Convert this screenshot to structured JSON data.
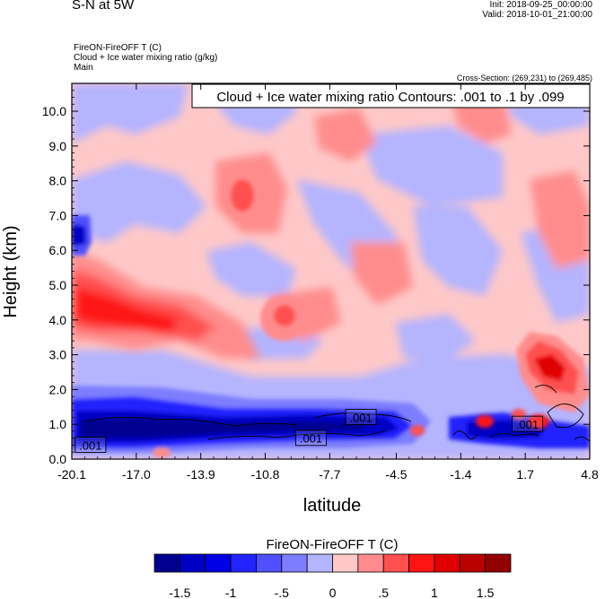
{
  "header": {
    "title": "S-N at 5W",
    "init": "Init: 2018-09-25_00:00:00",
    "valid": "Valid: 2018-10-01_21:00:00",
    "field_1": "FireON-FireOFF T   (C)",
    "field_2": "Cloud + Ice water mixing ratio   (g/kg)",
    "domain": "Main",
    "cross_section": "Cross-Section: (269,231) to (269,485)"
  },
  "chart_data": {
    "type": "heatmap",
    "title": "S-N at 5W",
    "xlabel": "latitude",
    "ylabel": "Height (km)",
    "xlim": [
      -20.1,
      4.8
    ],
    "ylim": [
      0.0,
      10.8
    ],
    "x_ticks": [
      "-20.1",
      "-17.0",
      "-13.9",
      "-10.8",
      "-7.7",
      "-4.5",
      "-1.4",
      "1.7",
      "4.8"
    ],
    "x_tick_values": [
      -20.1,
      -17.0,
      -13.9,
      -10.8,
      -7.7,
      -4.5,
      -1.4,
      1.7,
      4.8
    ],
    "y_ticks": [
      "0.0",
      "1.0",
      "2.0",
      "3.0",
      "4.0",
      "5.0",
      "6.0",
      "7.0",
      "8.0",
      "9.0",
      "10.0"
    ],
    "y_tick_values": [
      0,
      1,
      2,
      3,
      4,
      5,
      6,
      7,
      8,
      9,
      10
    ],
    "contour_annotation": "Cloud + Ice water mixing ratio Contours: .001 to .1 by .099",
    "contour_labels": [
      {
        "text": ".001",
        "x": -19.2,
        "y": 0.4
      },
      {
        "text": ".001",
        "x": -8.6,
        "y": 0.6
      },
      {
        "text": ".001",
        "x": -6.2,
        "y": 1.2
      },
      {
        "text": ".001",
        "x": 1.8,
        "y": 1.0
      }
    ],
    "colorbar": {
      "title": "FireON-FireOFF T  (C)",
      "levels": [
        -1.75,
        -1.5,
        -1.25,
        -1.0,
        -0.75,
        -0.5,
        -0.25,
        0.0,
        0.25,
        0.5,
        0.75,
        1.0,
        1.25,
        1.5,
        1.75
      ],
      "tick_labels": [
        "-1.5",
        "-1",
        "-.5",
        "0",
        ".5",
        "1",
        "1.5"
      ],
      "tick_values": [
        -1.5,
        -1.0,
        -0.5,
        0.0,
        0.5,
        1.0,
        1.5
      ],
      "colors": [
        "#00008f",
        "#0000c4",
        "#0000e6",
        "#2323ff",
        "#5050ff",
        "#7d7dff",
        "#b4b4ff",
        "#ffc8c8",
        "#ff8c8c",
        "#ff5050",
        "#ff1414",
        "#e00000",
        "#bb0000",
        "#930000"
      ]
    },
    "features": [
      {
        "name": "near-surface cooling band",
        "lat": [
          -20.1,
          -4.0
        ],
        "height": [
          0.3,
          1.5
        ],
        "value": -1.4
      },
      {
        "name": "lower-tropospheric warming",
        "lat": [
          -20.1,
          -11.0
        ],
        "height": [
          2.5,
          5.8
        ],
        "value": 1.0
      },
      {
        "name": "warm core near 4 km",
        "lat": [
          -11.5,
          -10.0
        ],
        "height": [
          3.6,
          4.6
        ],
        "value": 0.8
      },
      {
        "name": "warm patch near 7.5 km",
        "lat": [
          -14.0,
          -12.5
        ],
        "height": [
          6.8,
          8.2
        ],
        "value": 0.8
      },
      {
        "name": "warm plume over northern cloud",
        "lat": [
          1.2,
          4.0
        ],
        "height": [
          1.5,
          3.6
        ],
        "value": 1.2
      },
      {
        "name": "cold pool near 6 km",
        "lat": [
          -20.1,
          -19.2
        ],
        "height": [
          5.7,
          7.0
        ],
        "value": -1.0
      }
    ]
  }
}
